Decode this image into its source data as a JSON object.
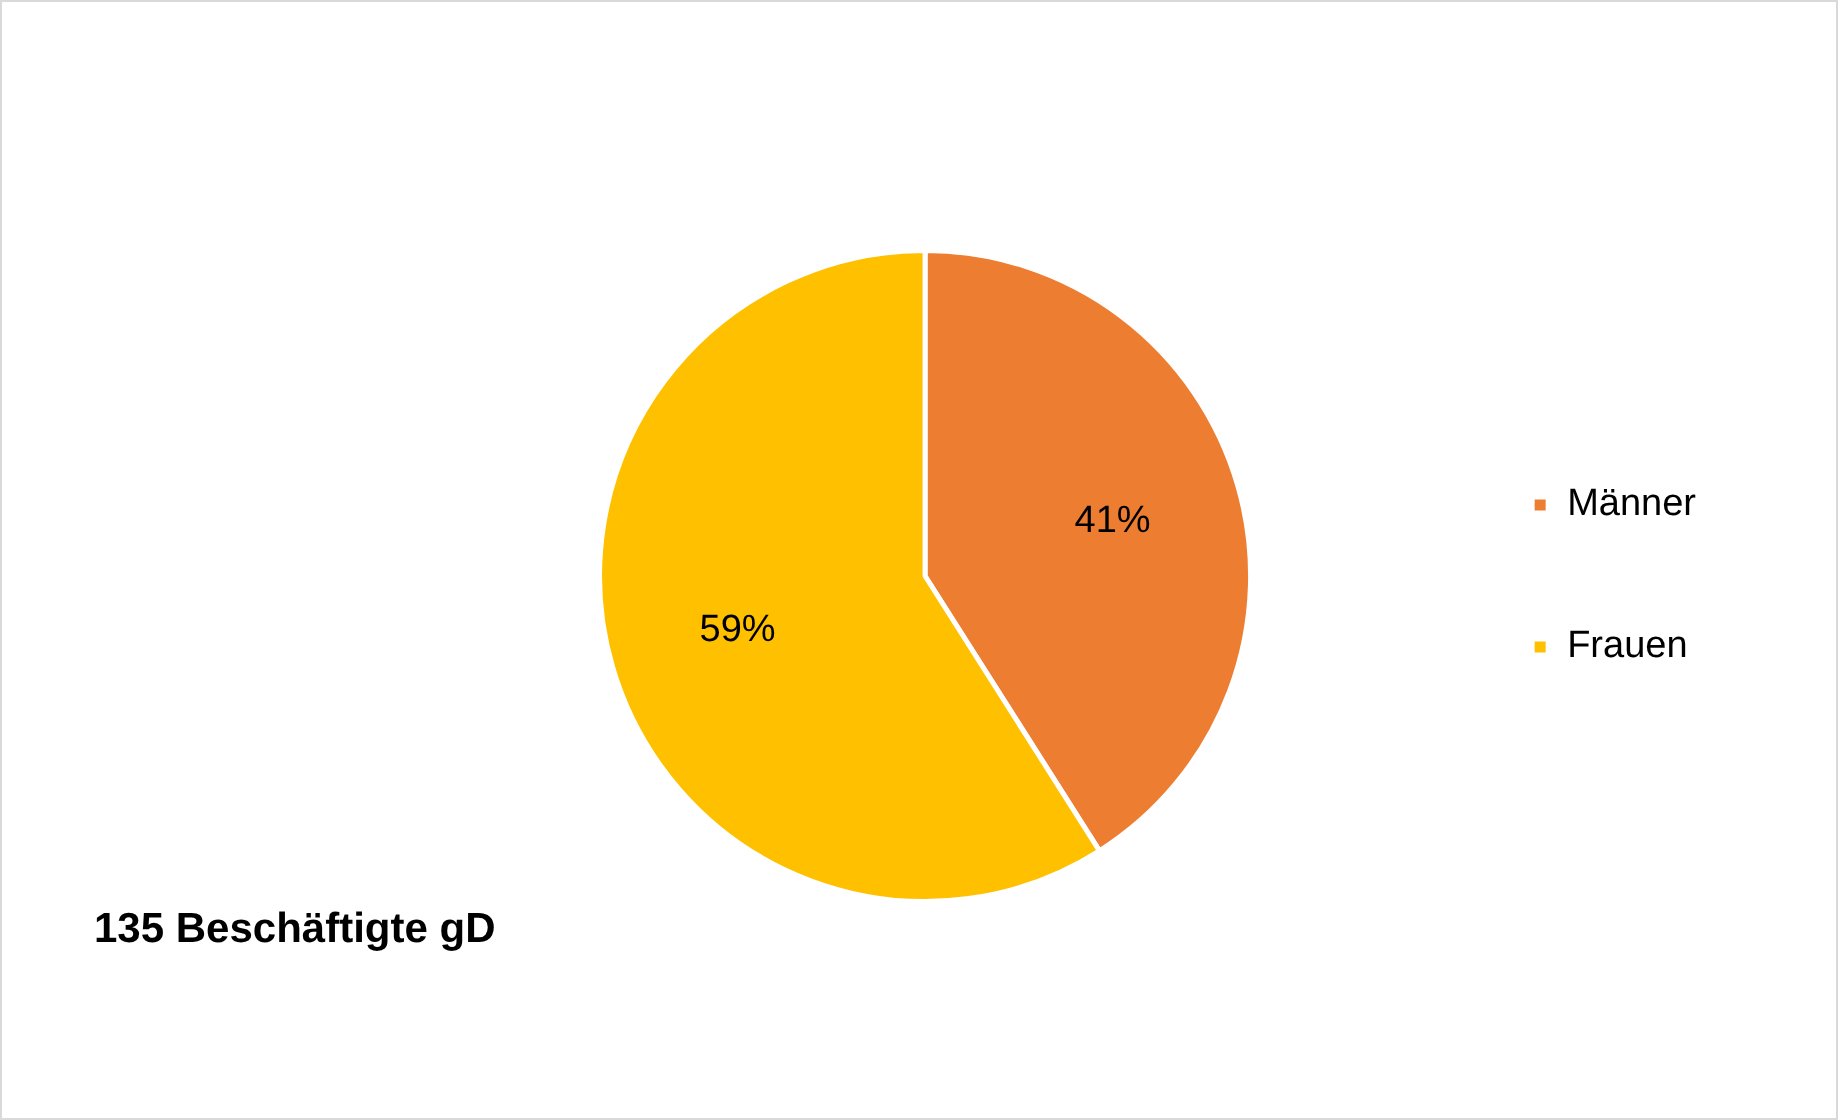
{
  "chart_data": {
    "type": "pie",
    "categories": [
      "Männer",
      "Frauen"
    ],
    "values": [
      41,
      59
    ],
    "value_labels": [
      "41%",
      "59%"
    ],
    "colors": [
      "#ed7d31",
      "#ffc000"
    ],
    "legend": "right",
    "annotations": [
      "135 Beschäftigte gD"
    ]
  }
}
